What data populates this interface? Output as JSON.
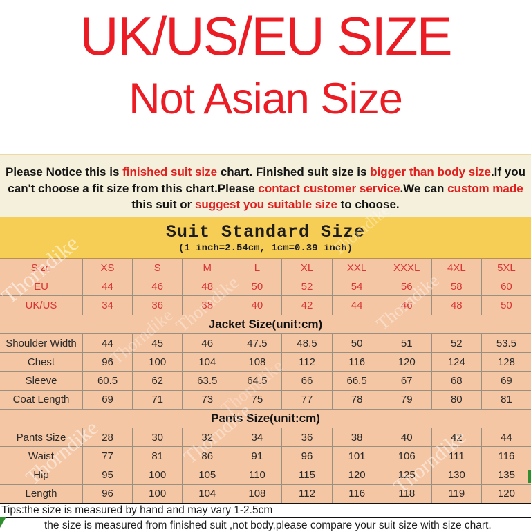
{
  "page": {
    "title_line1": "UK/US/EU SIZE",
    "title_line2": "Not Asian Size"
  },
  "notice": {
    "lines": [
      [
        {
          "t": "Please Notice this is ",
          "r": false
        },
        {
          "t": "finished suit size",
          "r": true
        },
        {
          "t": " chart. Finished suit size is ",
          "r": false
        },
        {
          "t": "bigger than body size",
          "r": true
        },
        {
          "t": ".If you",
          "r": false
        }
      ],
      [
        {
          "t": "can't choose a fit size from this chart.Please ",
          "r": false
        },
        {
          "t": "contact customer service",
          "r": true
        },
        {
          "t": ".We can ",
          "r": false
        },
        {
          "t": "custom made",
          "r": true
        }
      ],
      [
        {
          "t": "this suit or ",
          "r": false
        },
        {
          "t": "suggest you suitable size",
          "r": true
        },
        {
          "t": " to choose.",
          "r": false
        }
      ]
    ]
  },
  "band": {
    "title": "Suit Standard Size",
    "subtitle": "(1 inch=2.54cm, 1cm=0.39 inch)"
  },
  "size_table": {
    "rows": [
      {
        "type": "data",
        "style": "red",
        "label": "Size",
        "values": [
          "XS",
          "S",
          "M",
          "L",
          "XL",
          "XXL",
          "XXXL",
          "4XL",
          "5XL"
        ]
      },
      {
        "type": "data",
        "style": "red",
        "label": "EU",
        "values": [
          "44",
          "46",
          "48",
          "50",
          "52",
          "54",
          "56",
          "58",
          "60"
        ]
      },
      {
        "type": "data",
        "style": "red",
        "label": "UK/US",
        "values": [
          "34",
          "36",
          "38",
          "40",
          "42",
          "44",
          "46",
          "48",
          "50"
        ]
      },
      {
        "type": "section",
        "label": "Jacket Size(unit:cm)"
      },
      {
        "type": "data",
        "label": "Shoulder Width",
        "values": [
          "44",
          "45",
          "46",
          "47.5",
          "48.5",
          "50",
          "51",
          "52",
          "53.5"
        ]
      },
      {
        "type": "data",
        "label": "Chest",
        "values": [
          "96",
          "100",
          "104",
          "108",
          "112",
          "116",
          "120",
          "124",
          "128"
        ]
      },
      {
        "type": "data",
        "label": "Sleeve",
        "values": [
          "60.5",
          "62",
          "63.5",
          "64.5",
          "66",
          "66.5",
          "67",
          "68",
          "69"
        ]
      },
      {
        "type": "data",
        "label": "Coat Length",
        "values": [
          "69",
          "71",
          "73",
          "75",
          "77",
          "78",
          "79",
          "80",
          "81"
        ]
      },
      {
        "type": "section",
        "label": "Pants Size(unit:cm)"
      },
      {
        "type": "data",
        "label": "Pants Size",
        "values": [
          "28",
          "30",
          "32",
          "34",
          "36",
          "38",
          "40",
          "42",
          "44"
        ]
      },
      {
        "type": "data",
        "label": "Waist",
        "values": [
          "77",
          "81",
          "86",
          "91",
          "96",
          "101",
          "106",
          "111",
          "116"
        ]
      },
      {
        "type": "data",
        "label": "Hip",
        "values": [
          "95",
          "100",
          "105",
          "110",
          "115",
          "120",
          "125",
          "130",
          "135"
        ]
      },
      {
        "type": "data",
        "label": "Length",
        "values": [
          "96",
          "100",
          "104",
          "108",
          "112",
          "116",
          "118",
          "119",
          "120"
        ]
      }
    ]
  },
  "tips": {
    "line1": "Tips:the size is measured by hand and may vary 1-2.5cm",
    "line2": "the size is measured from finished suit ,not body,please compare your suit size with size chart."
  },
  "watermark": "Thorndike",
  "colors": {
    "title_red": "#ec1c24",
    "notice_red": "#e01f1f",
    "notice_bg": "#f5f0db",
    "band_yellow": "#f7ce55",
    "table_peach": "#f5c6a4",
    "table_red_text": "#d93535",
    "border_gray": "#979083",
    "marker_green": "#2f8f2f"
  }
}
